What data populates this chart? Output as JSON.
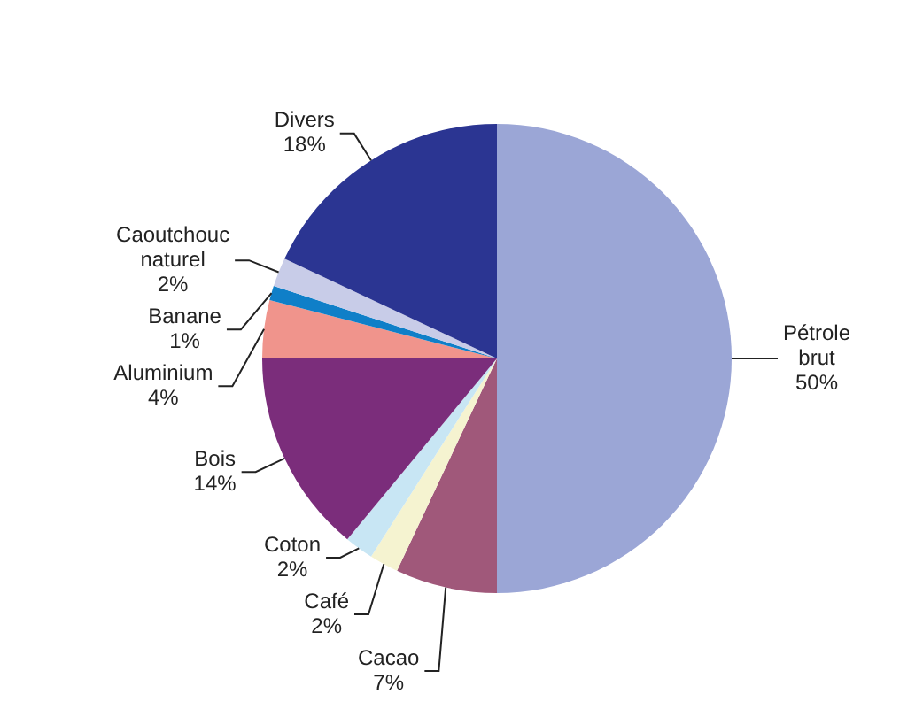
{
  "chart_data": {
    "type": "pie",
    "categories": [
      "Pétrole brut",
      "Cacao",
      "Café",
      "Coton",
      "Bois",
      "Aluminium",
      "Banane",
      "Caoutchouc naturel",
      "Divers"
    ],
    "values": [
      50,
      7,
      2,
      2,
      14,
      4,
      1,
      2,
      18
    ],
    "value_labels": [
      "50%",
      "7%",
      "2%",
      "2%",
      "14%",
      "4%",
      "1%",
      "2%",
      "18%"
    ],
    "colors": [
      "#9ba6d6",
      "#a0587a",
      "#f5f3d0",
      "#c8e6f4",
      "#7b2d7b",
      "#f0948c",
      "#0f7fc8",
      "#c8cce8",
      "#2b3592"
    ]
  }
}
